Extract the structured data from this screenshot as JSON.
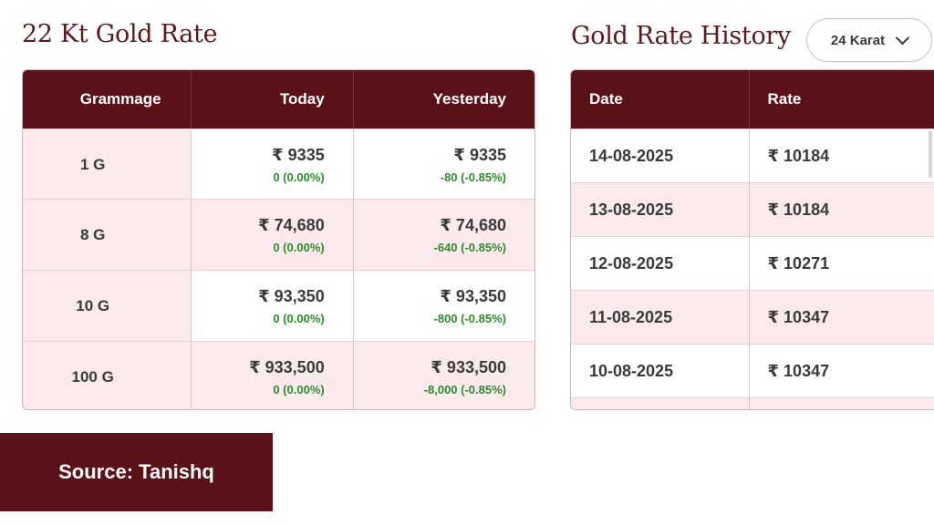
{
  "left": {
    "title": "22 Kt Gold Rate",
    "headers": [
      "Grammage",
      "Today",
      "Yesterday"
    ],
    "rows": [
      {
        "grammage": "1 G",
        "today_price": "₹ 9335",
        "today_change": "0 (0.00%)",
        "yesterday_price": "₹ 9335",
        "yesterday_change": "-80 (-0.85%)"
      },
      {
        "grammage": "8 G",
        "today_price": "₹ 74,680",
        "today_change": "0 (0.00%)",
        "yesterday_price": "₹ 74,680",
        "yesterday_change": "-640 (-0.85%)"
      },
      {
        "grammage": "10 G",
        "today_price": "₹ 93,350",
        "today_change": "0 (0.00%)",
        "yesterday_price": "₹ 93,350",
        "yesterday_change": "-800 (-0.85%)"
      },
      {
        "grammage": "100 G",
        "today_price": "₹ 933,500",
        "today_change": "0 (0.00%)",
        "yesterday_price": "₹ 933,500",
        "yesterday_change": "-8,000 (-0.85%)"
      }
    ]
  },
  "right": {
    "title": "Gold Rate History",
    "karat_select": "24 Karat",
    "headers": [
      "Date",
      "Rate"
    ],
    "rows": [
      {
        "date": "14-08-2025",
        "rate": "₹ 10184"
      },
      {
        "date": "13-08-2025",
        "rate": "₹ 10184"
      },
      {
        "date": "12-08-2025",
        "rate": "₹ 10271"
      },
      {
        "date": "11-08-2025",
        "rate": "₹ 10347"
      },
      {
        "date": "10-08-2025",
        "rate": "₹ 10347"
      }
    ]
  },
  "source": "Source: Tanishq",
  "colors": {
    "header_bg": "#5a1218",
    "row_pink": "#fbeaec",
    "change_green": "#2e8b2e",
    "title": "#5a1a1e"
  }
}
